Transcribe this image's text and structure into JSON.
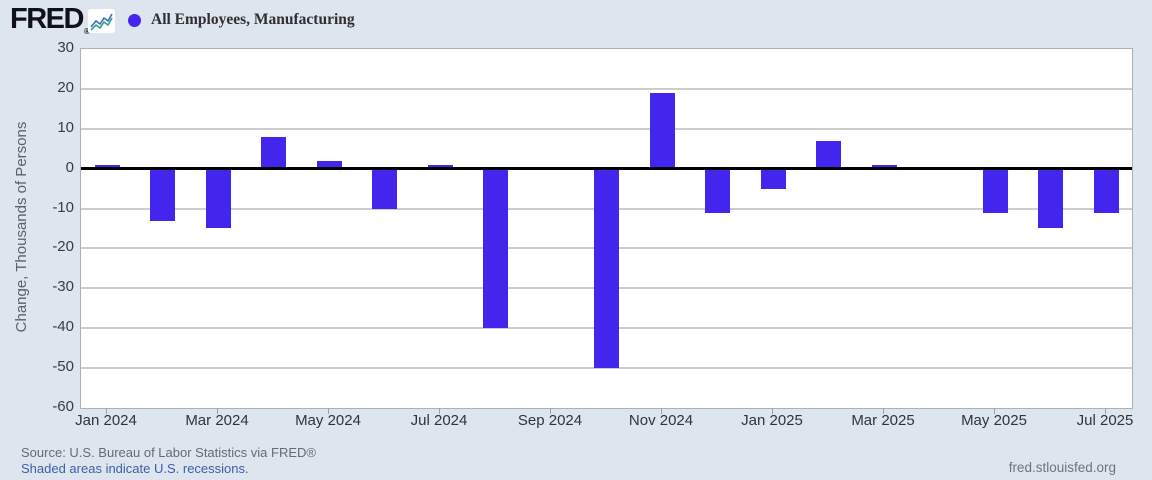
{
  "header": {
    "logo": "FRED",
    "logo_reg": "®",
    "legend": {
      "marker": "circle",
      "label": "All Employees, Manufacturing"
    }
  },
  "chart_data": {
    "type": "bar",
    "title": "All Employees, Manufacturing",
    "ylabel": "Change, Thousands of Persons",
    "xlabel": "",
    "ylim": [
      -60,
      30
    ],
    "y_ticks": [
      30,
      20,
      10,
      0,
      -10,
      -20,
      -30,
      -40,
      -50,
      -60
    ],
    "grid": true,
    "legend_position": "top-left",
    "bar_color": "#4226ee",
    "categories": [
      "Jan 2024",
      "Feb 2024",
      "Mar 2024",
      "Apr 2024",
      "May 2024",
      "Jun 2024",
      "Jul 2024",
      "Aug 2024",
      "Sep 2024",
      "Oct 2024",
      "Nov 2024",
      "Dec 2024",
      "Jan 2025",
      "Feb 2025",
      "Mar 2025",
      "Apr 2025",
      "May 2025",
      "Jun 2025",
      "Jul 2025"
    ],
    "values": [
      1,
      -13,
      -15,
      8,
      2,
      -10,
      1,
      -40,
      0,
      -50,
      19,
      -11,
      -5,
      7,
      1,
      0,
      -11,
      -15,
      -11
    ],
    "x_axis_labels": [
      "Jan 2024",
      "Mar 2024",
      "May 2024",
      "Jul 2024",
      "Sep 2024",
      "Nov 2024",
      "Jan 2025",
      "Mar 2025",
      "May 2025",
      "Jul 2025"
    ]
  },
  "footer": {
    "source": "Source: U.S. Bureau of Labor Statistics via FRED®",
    "recessions_link": "Shaded areas indicate U.S. recessions.",
    "site_link": "fred.stlouisfed.org"
  },
  "colors": {
    "background": "#dde5ee",
    "bar": "#4226ee",
    "zero_line": "#000000",
    "gridline": "#cccccc",
    "icon_line_teal": "#2f9e8f",
    "icon_line_blue": "#3b6fb5"
  }
}
